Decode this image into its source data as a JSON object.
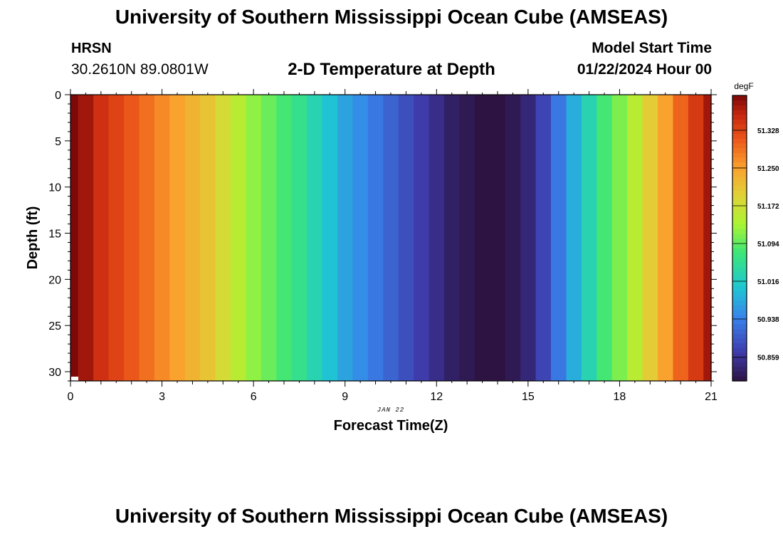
{
  "header": {
    "title": "University of Southern Mississippi Ocean Cube (AMSEAS)",
    "station": "HRSN",
    "coordinates": "30.2610N  89.0801W",
    "plot_title": "2-D Temperature at Depth",
    "model_start_label": "Model Start Time",
    "model_start_value": "01/22/2024 Hour 00"
  },
  "footer": {
    "title": "University of Southern Mississippi Ocean Cube (AMSEAS)"
  },
  "chart_data": {
    "type": "heatmap",
    "title": "2-D Temperature at Depth",
    "xlabel": "Forecast Time(Z)",
    "ylabel": "Depth (ft)",
    "date_label": "JAN 22",
    "xlim": [
      0,
      21
    ],
    "ylim": [
      0,
      31
    ],
    "x_ticks": [
      0,
      3,
      6,
      9,
      12,
      15,
      18,
      21
    ],
    "y_ticks": [
      0,
      5,
      10,
      15,
      20,
      25,
      30
    ],
    "colorbar": {
      "units": "degF",
      "range": [
        50.81,
        51.4
      ],
      "tick_values": [
        51.328,
        51.25,
        51.172,
        51.094,
        51.016,
        50.938,
        50.859
      ],
      "tick_labels": [
        "51.328",
        "51.250",
        "51.172",
        "51.094",
        "51.016",
        "50.938",
        "50.859"
      ]
    },
    "forecast_hours": [
      0,
      0.5,
      1,
      1.5,
      2,
      2.5,
      3,
      3.5,
      4,
      4.5,
      5,
      5.5,
      6,
      6.5,
      7,
      7.5,
      8,
      8.5,
      9,
      9.5,
      10,
      10.5,
      11,
      11.5,
      12,
      12.5,
      13,
      13.5,
      14,
      14.5,
      15,
      15.5,
      16,
      16.5,
      17,
      17.5,
      18,
      18.5,
      19,
      19.5,
      20,
      20.5,
      21
    ],
    "temperature_degF": [
      51.4,
      51.38,
      51.35,
      51.33,
      51.31,
      51.29,
      51.27,
      51.25,
      51.23,
      51.21,
      51.18,
      51.15,
      51.12,
      51.1,
      51.08,
      51.06,
      51.03,
      51.0,
      50.97,
      50.95,
      50.93,
      50.91,
      50.89,
      50.87,
      50.85,
      50.83,
      50.82,
      50.81,
      50.81,
      50.82,
      50.84,
      50.88,
      50.93,
      50.98,
      51.03,
      51.08,
      51.11,
      51.15,
      51.2,
      51.25,
      51.3,
      51.34,
      51.38
    ]
  }
}
